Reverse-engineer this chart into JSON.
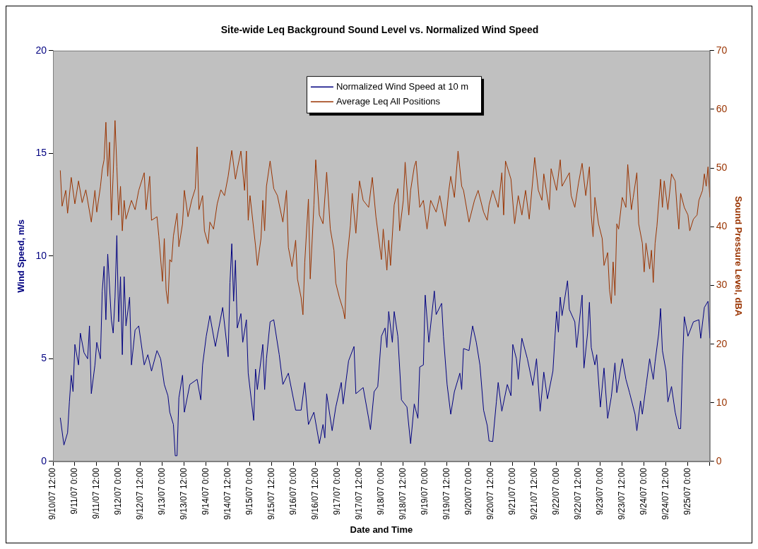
{
  "chart_data": {
    "type": "line",
    "title": "Site-wide Leq Background Sound Level vs. Normalized Wind Speed",
    "xlabel": "Date and Time",
    "ylabel": "Wind Speed, m/s",
    "y2label": "Sound Pressure Level, dBA",
    "legend": "top",
    "xlim": [
      "--09-10T12:00",
      "--09-25T12:00"
    ],
    "xticks": [
      {
        "value": "--09-10T12:00",
        "label": "9/10/07 12:00"
      },
      {
        "value": "--09-11T00:00",
        "label": "9/11/07 0:00"
      },
      {
        "value": "--09-11T12:00",
        "label": "9/11/07 12:00"
      },
      {
        "value": "--09-12T00:00",
        "label": "9/12/07 0:00"
      },
      {
        "value": "--09-12T12:00",
        "label": "9/12/07 12:00"
      },
      {
        "value": "--09-13T00:00",
        "label": "9/13/07 0:00"
      },
      {
        "value": "--09-13T12:00",
        "label": "9/13/07 12:00"
      },
      {
        "value": "--09-14T00:00",
        "label": "9/14/07 0:00"
      },
      {
        "value": "--09-14T12:00",
        "label": "9/14/07 12:00"
      },
      {
        "value": "--09-15T00:00",
        "label": "9/15/07 0:00"
      },
      {
        "value": "--09-15T12:00",
        "label": "9/15/07 12:00"
      },
      {
        "value": "--09-16T00:00",
        "label": "9/16/07 0:00"
      },
      {
        "value": "--09-16T12:00",
        "label": "9/16/07 12:00"
      },
      {
        "value": "--09-17T00:00",
        "label": "9/17/07 0:00"
      },
      {
        "value": "--09-17T12:00",
        "label": "9/17/07 12:00"
      },
      {
        "value": "--09-18T00:00",
        "label": "9/18/07 0:00"
      },
      {
        "value": "--09-18T12:00",
        "label": "9/18/07 12:00"
      },
      {
        "value": "--09-19T00:00",
        "label": "9/19/07 0:00"
      },
      {
        "value": "--09-19T12:00",
        "label": "9/19/07 12:00"
      },
      {
        "value": "--09-20T00:00",
        "label": "9/20/07 0:00"
      },
      {
        "value": "--09-20T12:00",
        "label": "9/20/07 12:00"
      },
      {
        "value": "--09-21T00:00",
        "label": "9/21/07 0:00"
      },
      {
        "value": "--09-21T12:00",
        "label": "9/21/07 12:00"
      },
      {
        "value": "--09-22T00:00",
        "label": "9/22/07 0:00"
      },
      {
        "value": "--09-22T12:00",
        "label": "9/22/07 12:00"
      },
      {
        "value": "--09-23T00:00",
        "label": "9/23/07 0:00"
      },
      {
        "value": "--09-23T12:00",
        "label": "9/23/07 12:00"
      },
      {
        "value": "--09-24T00:00",
        "label": "9/24/07 0:00"
      },
      {
        "value": "--09-24T12:00",
        "label": "9/24/07 12:00"
      },
      {
        "value": "--09-25T00:00",
        "label": "9/25/07 0:00"
      },
      {
        "value": "--09-25T12:00",
        "label": null
      }
    ],
    "ylim": [
      0,
      20
    ],
    "yticks": [
      0,
      5,
      10,
      15,
      20
    ],
    "y2lim": [
      0,
      70
    ],
    "y2ticks": [
      0,
      10,
      20,
      30,
      40,
      50,
      60,
      70
    ],
    "series": [
      {
        "name": "Normalized Wind Speed at 10 m",
        "color": "#000080",
        "x": [
          "--09-10T16:00",
          "--09-10T18:00",
          "--09-10T20:00",
          "--09-10T21:00",
          "--09-10T22:00",
          "--09-10T23:00",
          "--09-11T00:00",
          "--09-11T02:00",
          "--09-11T03:00",
          "--09-11T05:00",
          "--09-11T07:00",
          "--09-11T08:00",
          "--09-11T09:00",
          "--09-11T11:00",
          "--09-11T12:00",
          "--09-11T14:00",
          "--09-11T15:00",
          "--09-11T16:00",
          "--09-11T17:00",
          "--09-11T18:00",
          "--09-11T20:00",
          "--09-11T21:00",
          "--09-11T22:00",
          "--09-11T23:00",
          "--09-12T00:00",
          "--09-12T01:00",
          "--09-12T02:00",
          "--09-12T03:00",
          "--09-12T04:00",
          "--09-12T06:00",
          "--09-12T07:00",
          "--09-12T09:00",
          "--09-12T11:00",
          "--09-12T14:00",
          "--09-12T16:00",
          "--09-12T18:00",
          "--09-12T21:00",
          "--09-12T23:00",
          "--09-13T01:00",
          "--09-13T03:00",
          "--09-13T04:00",
          "--09-13T06:00",
          "--09-13T07:00",
          "--09-13T08:00",
          "--09-13T09:00",
          "--09-13T11:00",
          "--09-13T12:00",
          "--09-13T15:00",
          "--09-13T19:00",
          "--09-13T21:00",
          "--09-13T22:00",
          "--09-14T00:00",
          "--09-14T02:00",
          "--09-14T05:00",
          "--09-14T09:00",
          "--09-14T12:00",
          "--09-14T13:00",
          "--09-14T14:00",
          "--09-14T15:00",
          "--09-14T16:00",
          "--09-14T17:00",
          "--09-14T19:00",
          "--09-14T20:00",
          "--09-14T22:00",
          "--09-14T23:00",
          "--09-15T02:00",
          "--09-15T03:00",
          "--09-15T04:00",
          "--09-15T07:00",
          "--09-15T08:00",
          "--09-15T09:00",
          "--09-15T11:00",
          "--09-15T13:00",
          "--09-15T16:00",
          "--09-15T18:00",
          "--09-15T21:00",
          "--09-16T01:00",
          "--09-16T04:00",
          "--09-16T06:00",
          "--09-16T08:00",
          "--09-16T11:00",
          "--09-16T14:00",
          "--09-16T16:00",
          "--09-16T17:00",
          "--09-16T18:00",
          "--09-16T21:00",
          "--09-16T23:00",
          "--09-17T02:00",
          "--09-17T03:00",
          "--09-17T06:00",
          "--09-17T09:00",
          "--09-17T10:00",
          "--09-17T14:00",
          "--09-17T17:00",
          "--09-17T18:00",
          "--09-17T20:00",
          "--09-17T22:00",
          "--09-18T00:00",
          "--09-18T02:00",
          "--09-18T03:00",
          "--09-18T04:00",
          "--09-18T06:00",
          "--09-18T07:00",
          "--09-18T09:00",
          "--09-18T11:00",
          "--09-18T14:00",
          "--09-18T16:00",
          "--09-18T18:00",
          "--09-18T20:00",
          "--09-18T21:00",
          "--09-18T23:00",
          "--09-19T00:00",
          "--09-19T02:00",
          "--09-19T05:00",
          "--09-19T06:00",
          "--09-19T09:00",
          "--09-19T10:00",
          "--09-19T12:00",
          "--09-19T14:00",
          "--09-19T16:00",
          "--09-19T19:00",
          "--09-19T20:00",
          "--09-19T21:00",
          "--09-20T00:00",
          "--09-20T02:00",
          "--09-20T04:00",
          "--09-20T06:00",
          "--09-20T08:00",
          "--09-20T10:00",
          "--09-20T11:00",
          "--09-20T13:00",
          "--09-20T15:00",
          "--09-20T16:00",
          "--09-20T18:00",
          "--09-20T21:00",
          "--09-20T23:00",
          "--09-21T00:00",
          "--09-21T02:00",
          "--09-21T03:00",
          "--09-21T05:00",
          "--09-21T08:00",
          "--09-21T11:00",
          "--09-21T13:00",
          "--09-21T15:00",
          "--09-21T17:00",
          "--09-21T19:00",
          "--09-21T22:00",
          "--09-21T23:00",
          "--09-22T00:00",
          "--09-22T01:00",
          "--09-22T02:00",
          "--09-22T03:00",
          "--09-22T06:00",
          "--09-22T07:00",
          "--09-22T10:00",
          "--09-22T11:00",
          "--09-22T14:00",
          "--09-22T15:00",
          "--09-22T17:00",
          "--09-22T18:00",
          "--09-22T19:00",
          "--09-22T21:00",
          "--09-22T22:00",
          "--09-23T00:00",
          "--09-23T02:00",
          "--09-23T04:00",
          "--09-23T06:00",
          "--09-23T08:00",
          "--09-23T09:00",
          "--09-23T12:00",
          "--09-23T14:00",
          "--09-23T16:00",
          "--09-23T19:00",
          "--09-23T20:00",
          "--09-23T22:00",
          "--09-23T23:00",
          "--09-24T01:00",
          "--09-24T03:00",
          "--09-24T05:00",
          "--09-24T06:00",
          "--09-24T08:00",
          "--09-24T09:00",
          "--09-24T10:00",
          "--09-24T12:00",
          "--09-24T13:00",
          "--09-24T15:00",
          "--09-24T17:00",
          "--09-24T19:00",
          "--09-24T20:00",
          "--09-24T21:00",
          "--09-24T22:00",
          "--09-25T00:00",
          "--09-25T03:00",
          "--09-25T06:00",
          "--09-25T07:00",
          "--09-25T09:00",
          "--09-25T11:00",
          "--09-25T12:00"
        ],
        "values": [
          2.13,
          0.8,
          1.4,
          2.9,
          4.2,
          3.4,
          5.7,
          4.7,
          6.25,
          5.3,
          5.0,
          6.6,
          3.3,
          4.7,
          5.8,
          5.0,
          8.3,
          9.5,
          6.9,
          10.1,
          6.9,
          6.25,
          8.0,
          11.0,
          6.8,
          9.0,
          5.2,
          9.0,
          6.6,
          8.0,
          4.7,
          6.4,
          6.6,
          4.7,
          5.2,
          4.4,
          5.4,
          5.0,
          3.75,
          3.2,
          2.4,
          1.8,
          0.28,
          0.28,
          3.1,
          4.2,
          2.4,
          3.75,
          4.0,
          3.0,
          4.7,
          6.1,
          7.1,
          5.6,
          7.5,
          5.1,
          8.7,
          10.6,
          7.8,
          9.8,
          6.5,
          7.2,
          5.8,
          6.9,
          4.3,
          2.0,
          4.5,
          3.5,
          5.7,
          3.5,
          5.0,
          6.8,
          6.9,
          5.2,
          3.75,
          4.3,
          2.5,
          2.5,
          3.85,
          1.8,
          2.4,
          0.87,
          1.8,
          1.15,
          3.3,
          1.5,
          2.65,
          3.85,
          2.8,
          4.9,
          5.6,
          3.3,
          3.6,
          2.1,
          1.55,
          3.4,
          3.65,
          6.1,
          6.5,
          5.55,
          7.3,
          5.8,
          7.3,
          6.1,
          3.0,
          2.65,
          0.87,
          2.8,
          2.1,
          4.6,
          4.7,
          8.1,
          5.8,
          8.3,
          7.15,
          7.7,
          6.1,
          3.75,
          2.3,
          3.4,
          4.3,
          3.5,
          5.5,
          5.4,
          6.6,
          5.8,
          4.7,
          2.5,
          1.75,
          1.0,
          0.97,
          2.9,
          3.85,
          2.45,
          3.75,
          3.2,
          5.7,
          5.0,
          4.0,
          6.0,
          5.0,
          3.7,
          5.0,
          2.45,
          4.35,
          3.05,
          4.4,
          5.9,
          7.3,
          6.3,
          8.0,
          7.1,
          8.8,
          7.4,
          6.8,
          5.55,
          8.1,
          4.55,
          6.25,
          7.75,
          5.55,
          4.7,
          5.2,
          2.65,
          4.55,
          2.1,
          3.15,
          4.8,
          3.35,
          5.0,
          4.0,
          3.35,
          2.3,
          1.5,
          2.95,
          2.3,
          3.65,
          5.0,
          4.0,
          4.85,
          6.25,
          7.45,
          5.4,
          4.4,
          2.9,
          3.65,
          2.4,
          1.6,
          1.6,
          4.7,
          7.05,
          6.1,
          6.8,
          6.9,
          6.0,
          7.5,
          7.8,
          6.0
        ]
      },
      {
        "name": "Average Leq All Positions",
        "color": "#993300",
        "axis": "y2",
        "x": [
          "--09-10T16:00",
          "--09-10T17:00",
          "--09-10T19:00",
          "--09-10T20:00",
          "--09-10T22:00",
          "--09-11T00:00",
          "--09-11T02:00",
          "--09-11T04:00",
          "--09-11T06:00",
          "--09-11T09:00",
          "--09-11T11:00",
          "--09-11T12:00",
          "--09-11T14:00",
          "--09-11T15:00",
          "--09-11T16:00",
          "--09-11T17:00",
          "--09-11T18:00",
          "--09-11T19:00",
          "--09-11T20:00",
          "--09-11T21:00",
          "--09-11T22:00",
          "--09-11T23:00",
          "--09-12T00:00",
          "--09-12T01:00",
          "--09-12T02:00",
          "--09-12T03:00",
          "--09-12T04:00",
          "--09-12T07:00",
          "--09-12T09:00",
          "--09-12T11:00",
          "--09-12T14:00",
          "--09-12T15:00",
          "--09-12T17:00",
          "--09-12T18:00",
          "--09-12T21:00",
          "--09-12T22:00",
          "--09-13T00:00",
          "--09-13T01:00",
          "--09-13T02:00",
          "--09-13T03:00",
          "--09-13T04:00",
          "--09-13T05:00",
          "--09-13T06:00",
          "--09-13T08:00",
          "--09-13T09:00",
          "--09-13T11:00",
          "--09-13T12:00",
          "--09-13T14:00",
          "--09-13T16:00",
          "--09-13T18:00",
          "--09-13T19:00",
          "--09-13T20:00",
          "--09-13T22:00",
          "--09-13T23:00",
          "--09-14T01:00",
          "--09-14T02:00",
          "--09-14T04:00",
          "--09-14T06:00",
          "--09-14T08:00",
          "--09-14T10:00",
          "--09-14T12:00",
          "--09-14T14:00",
          "--09-14T16:00",
          "--09-14T17:00",
          "--09-14T19:00",
          "--09-14T21:00",
          "--09-14T22:00",
          "--09-14T23:00",
          "--09-15T00:00",
          "--09-15T02:00",
          "--09-15T03:00",
          "--09-15T04:00",
          "--09-15T06:00",
          "--09-15T07:00",
          "--09-15T08:00",
          "--09-15T09:00",
          "--09-15T11:00",
          "--09-15T13:00",
          "--09-15T15:00",
          "--09-15T18:00",
          "--09-15T20:00",
          "--09-15T21:00",
          "--09-15T23:00",
          "--09-16T01:00",
          "--09-16T02:00",
          "--09-16T04:00",
          "--09-16T05:00",
          "--09-16T06:00",
          "--09-16T08:00",
          "--09-16T09:00",
          "--09-16T11:00",
          "--09-16T12:00",
          "--09-16T14:00",
          "--09-16T16:00",
          "--09-16T18:00",
          "--09-16T20:00",
          "--09-16T22:00",
          "--09-16T23:00",
          "--09-17T01:00",
          "--09-17T03:00",
          "--09-17T04:00",
          "--09-17T05:00",
          "--09-17T07:00",
          "--09-17T08:00",
          "--09-17T10:00",
          "--09-17T12:00",
          "--09-17T14:00",
          "--09-17T17:00",
          "--09-17T19:00",
          "--09-17T21:00",
          "--09-17T22:00",
          "--09-18T00:00",
          "--09-18T01:00",
          "--09-18T03:00",
          "--09-18T04:00",
          "--09-18T05:00",
          "--09-18T07:00",
          "--09-18T09:00",
          "--09-18T10:00",
          "--09-18T12:00",
          "--09-18T13:00",
          "--09-18T15:00",
          "--09-18T16:00",
          "--09-18T18:00",
          "--09-18T19:00",
          "--09-18T21:00",
          "--09-18T23:00",
          "--09-19T01:00",
          "--09-19T03:00",
          "--09-19T06:00",
          "--09-19T08:00",
          "--09-19T11:00",
          "--09-19T13:00",
          "--09-19T14:00",
          "--09-19T16:00",
          "--09-19T18:00",
          "--09-19T20:00",
          "--09-19T21:00",
          "--09-20T00:00",
          "--09-20T03:00",
          "--09-20T05:00",
          "--09-20T08:00",
          "--09-20T10:00",
          "--09-20T11:00",
          "--09-20T13:00",
          "--09-20T16:00",
          "--09-20T18:00",
          "--09-20T19:00",
          "--09-20T20:00",
          "--09-20T23:00",
          "--09-21T01:00",
          "--09-21T03:00",
          "--09-21T05:00",
          "--09-21T07:00",
          "--09-21T09:00",
          "--09-21T11:00",
          "--09-21T12:00",
          "--09-21T14:00",
          "--09-21T16:00",
          "--09-21T17:00",
          "--09-21T20:00",
          "--09-21T21:00",
          "--09-22T00:00",
          "--09-22T02:00",
          "--09-22T03:00",
          "--09-22T07:00",
          "--09-22T08:00",
          "--09-22T10:00",
          "--09-22T12:00",
          "--09-22T14:00",
          "--09-22T16:00",
          "--09-22T18:00",
          "--09-22T19:00",
          "--09-22T20:00",
          "--09-22T21:00",
          "--09-22T23:00",
          "--09-23T01:00",
          "--09-23T02:00",
          "--09-23T04:00",
          "--09-23T05:00",
          "--09-23T06:00",
          "--09-23T07:00",
          "--09-23T08:00",
          "--09-23T09:00",
          "--09-23T10:00",
          "--09-23T12:00",
          "--09-23T14:00",
          "--09-23T15:00",
          "--09-23T17:00",
          "--09-23T18:00",
          "--09-23T20:00",
          "--09-23T21:00",
          "--09-23T23:00",
          "--09-24T00:00",
          "--09-24T01:00",
          "--09-24T03:00",
          "--09-24T04:00",
          "--09-24T05:00",
          "--09-24T06:00",
          "--09-24T07:00",
          "--09-24T09:00",
          "--09-24T10:00",
          "--09-24T11:00",
          "--09-24T13:00",
          "--09-24T15:00",
          "--09-24T17:00",
          "--09-24T18:00",
          "--09-24T19:00",
          "--09-24T20:00",
          "--09-24T22:00",
          "--09-25T00:00",
          "--09-25T01:00",
          "--09-25T03:00",
          "--09-25T05:00",
          "--09-25T06:00",
          "--09-25T08:00",
          "--09-25T09:00",
          "--09-25T10:00",
          "--09-25T11:00",
          "--09-25T12:00"
        ],
        "values": [
          49.6,
          43.5,
          46.2,
          42.3,
          48.4,
          43.9,
          47.8,
          44.1,
          46.3,
          40.8,
          46.2,
          42.5,
          46.8,
          49.8,
          51.4,
          57.8,
          48.6,
          54.4,
          41.1,
          49.0,
          58.1,
          50.2,
          42.0,
          46.9,
          39.3,
          44.5,
          41.3,
          44.5,
          42.9,
          46.2,
          49.2,
          42.9,
          48.6,
          41.1,
          41.7,
          38.4,
          30.7,
          38.0,
          29.2,
          26.9,
          34.4,
          34.0,
          38.4,
          42.3,
          36.6,
          40.5,
          46.2,
          41.7,
          44.5,
          46.5,
          53.6,
          42.9,
          45.3,
          39.3,
          37.1,
          40.8,
          39.6,
          43.9,
          46.3,
          45.3,
          48.6,
          53.0,
          48.1,
          49.8,
          52.9,
          46.2,
          52.9,
          41.1,
          45.3,
          39.6,
          36.8,
          33.4,
          38.0,
          44.5,
          39.3,
          46.9,
          51.2,
          46.5,
          45.3,
          40.8,
          46.2,
          36.5,
          33.2,
          37.7,
          31.1,
          27.9,
          25.0,
          34.0,
          44.7,
          31.1,
          43.7,
          51.4,
          42.0,
          40.5,
          49.3,
          39.6,
          36.0,
          30.4,
          27.9,
          25.9,
          24.3,
          34.0,
          40.2,
          45.7,
          38.9,
          47.8,
          44.5,
          43.3,
          48.4,
          41.7,
          39.3,
          34.4,
          39.6,
          32.6,
          37.7,
          33.4,
          43.7,
          46.5,
          39.3,
          44.5,
          51.0,
          42.0,
          46.2,
          50.2,
          51.2,
          43.3,
          44.5,
          39.6,
          44.5,
          42.5,
          45.3,
          40.1,
          46.3,
          48.6,
          45.0,
          52.9,
          46.9,
          46.2,
          40.8,
          44.5,
          46.2,
          42.5,
          41.1,
          43.7,
          46.2,
          43.3,
          49.2,
          42.0,
          51.2,
          48.1,
          40.5,
          45.3,
          42.0,
          46.2,
          41.3,
          48.1,
          51.8,
          46.2,
          44.5,
          49.0,
          42.9,
          49.9,
          46.2,
          51.4,
          46.9,
          49.2,
          45.3,
          43.3,
          47.4,
          50.8,
          45.3,
          50.2,
          42.0,
          38.3,
          45.0,
          40.5,
          38.0,
          33.4,
          35.6,
          29.3,
          26.9,
          34.0,
          28.3,
          40.5,
          39.6,
          45.0,
          43.3,
          50.6,
          42.9,
          45.0,
          49.2,
          40.5,
          37.2,
          32.3,
          37.2,
          32.8,
          36.0,
          30.5,
          37.2,
          40.1,
          48.1,
          43.3,
          47.8,
          42.9,
          49.0,
          47.8,
          43.3,
          39.6,
          45.7,
          43.3,
          42.0,
          39.3,
          41.3,
          42.0,
          44.5,
          46.2,
          49.0,
          46.9,
          50.2,
          45.0
        ]
      }
    ]
  }
}
